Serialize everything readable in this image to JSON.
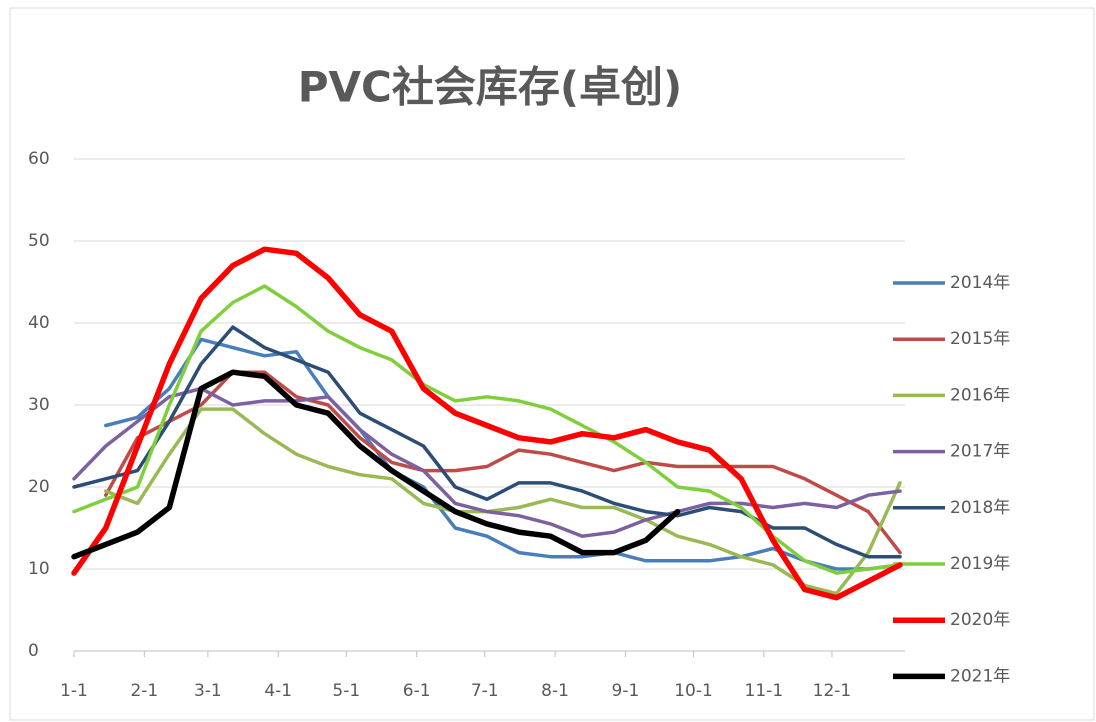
{
  "chart_data": {
    "type": "line",
    "title": "PVC社会库存(卓创)",
    "x": [
      1,
      15,
      29,
      43,
      57,
      71,
      85,
      99,
      113,
      127,
      141,
      155,
      169,
      183,
      197,
      211,
      225,
      239,
      253,
      267,
      281,
      295,
      309,
      323,
      337,
      351,
      365
    ],
    "xlim": [
      1,
      365
    ],
    "xticks": [
      {
        "value": 1,
        "label": "1-1"
      },
      {
        "value": 32,
        "label": "2-1"
      },
      {
        "value": 60,
        "label": "3-1"
      },
      {
        "value": 91,
        "label": "4-1"
      },
      {
        "value": 121,
        "label": "5-1"
      },
      {
        "value": 152,
        "label": "6-1"
      },
      {
        "value": 182,
        "label": "7-1"
      },
      {
        "value": 213,
        "label": "8-1"
      },
      {
        "value": 244,
        "label": "9-1"
      },
      {
        "value": 274,
        "label": "10-1"
      },
      {
        "value": 305,
        "label": "11-1"
      },
      {
        "value": 335,
        "label": "12-1"
      }
    ],
    "ylim": [
      0,
      60
    ],
    "yticks": [
      0,
      10,
      20,
      30,
      40,
      50,
      60
    ],
    "grid": true,
    "legend": "right",
    "series": [
      {
        "name": "2014年",
        "color": "#4a7ebb",
        "values": [
          null,
          27.5,
          28.5,
          32,
          38,
          37,
          36,
          36.5,
          31,
          27,
          22,
          20,
          15,
          14,
          12,
          11.5,
          11.5,
          12,
          11,
          11,
          11,
          11.5,
          12.5,
          11,
          10,
          10,
          10.5
        ]
      },
      {
        "name": "2015年",
        "color": "#be4b48",
        "values": [
          null,
          19,
          26,
          28,
          30,
          34,
          34,
          31,
          30,
          26,
          23,
          22,
          22,
          22.5,
          24.5,
          24,
          23,
          22,
          23,
          22.5,
          22.5,
          22.5,
          22.5,
          21,
          19,
          17,
          12
        ]
      },
      {
        "name": "2016年",
        "color": "#98b954",
        "values": [
          null,
          19.5,
          18,
          24,
          29.5,
          29.5,
          26.5,
          24,
          22.5,
          21.5,
          21,
          18,
          17,
          17,
          17.5,
          18.5,
          17.5,
          17.5,
          16,
          14,
          13,
          11.5,
          10.5,
          8,
          7,
          12,
          20.5
        ]
      },
      {
        "name": "2017年",
        "color": "#7d60a0",
        "values": [
          21,
          25,
          28,
          31,
          32,
          30,
          30.5,
          30.5,
          31,
          27,
          24,
          22,
          18,
          17,
          16.5,
          15.5,
          14,
          14.5,
          16,
          17,
          18,
          18,
          17.5,
          18,
          17.5,
          19,
          19.5
        ]
      },
      {
        "name": "2018年",
        "color": "#2c4d75",
        "values": [
          20,
          21,
          22,
          28,
          35,
          39.5,
          37,
          35.5,
          34,
          29,
          27,
          25,
          20,
          18.5,
          20.5,
          20.5,
          19.5,
          18,
          17,
          16.5,
          17.5,
          17,
          15,
          15,
          13,
          11.5,
          11.5
        ]
      },
      {
        "name": "2019年",
        "color": "#7fcf3c",
        "values": [
          17,
          18.5,
          20,
          30,
          39,
          42.5,
          44.5,
          42,
          39,
          37,
          35.5,
          32.5,
          30.5,
          31,
          30.5,
          29.5,
          27.5,
          25.5,
          23,
          20,
          19.5,
          17.5,
          14,
          11,
          9.5,
          10,
          10.5
        ]
      },
      {
        "name": "2020年",
        "color": "#ff0000",
        "values": [
          9.5,
          15,
          25,
          35,
          43,
          47,
          49,
          48.5,
          45.5,
          41,
          39,
          32,
          29,
          27.5,
          26,
          25.5,
          26.5,
          26,
          27,
          25.5,
          24.5,
          21,
          13.5,
          7.5,
          6.5,
          8.5,
          10.5
        ]
      },
      {
        "name": "2021年",
        "color": "#000000",
        "values": [
          11.5,
          13,
          14.5,
          17.5,
          32,
          34,
          33.5,
          30,
          29,
          25,
          22,
          19.5,
          17,
          15.5,
          14.5,
          14,
          12,
          12,
          13.5,
          17,
          null,
          null,
          null,
          null,
          null,
          null,
          null
        ]
      }
    ]
  }
}
